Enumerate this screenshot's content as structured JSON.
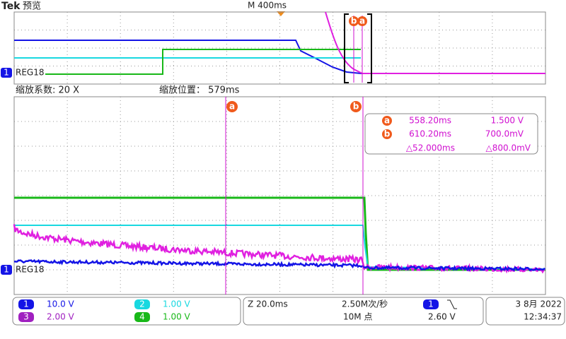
{
  "header": {
    "brand": "Tek",
    "mode": "预览",
    "timebase": "M 400ms"
  },
  "overview": {
    "cursor_labels": [
      "b",
      "a"
    ],
    "channel_marker": "1",
    "channel_label": "REG18"
  },
  "zoom": {
    "factor": "缩放系数: 20 X",
    "position": "缩放位置： 579ms"
  },
  "main": {
    "cursor_labels": [
      "a",
      "b"
    ],
    "channel_marker": "1",
    "channel_label": "REG18"
  },
  "readout": {
    "cursor_a": {
      "label": "a",
      "time": "558.20ms",
      "level": "1.500 V"
    },
    "cursor_b": {
      "label": "b",
      "time": "610.20ms",
      "level": "700.0mV"
    },
    "delta": {
      "time": "△52.000ms",
      "level": "△800.0mV"
    }
  },
  "channels": [
    {
      "number": "1",
      "scale": "10.0 V",
      "color": "#1414e6"
    },
    {
      "number": "2",
      "scale": "1.00 V",
      "color": "#18d8e0"
    },
    {
      "number": "3",
      "scale": "2.00 V",
      "color": "#a020c0"
    },
    {
      "number": "4",
      "scale": "1.00 V",
      "color": "#18b818"
    }
  ],
  "acquisition": {
    "zoom_scale": "Z 20.0ms",
    "sample_rate": "2.50M次/秒",
    "record_length": "10M 点"
  },
  "trigger": {
    "source": "1",
    "level": "2.60 V"
  },
  "clock": {
    "date": "3 8月 2022",
    "time": "12:34:37"
  }
}
